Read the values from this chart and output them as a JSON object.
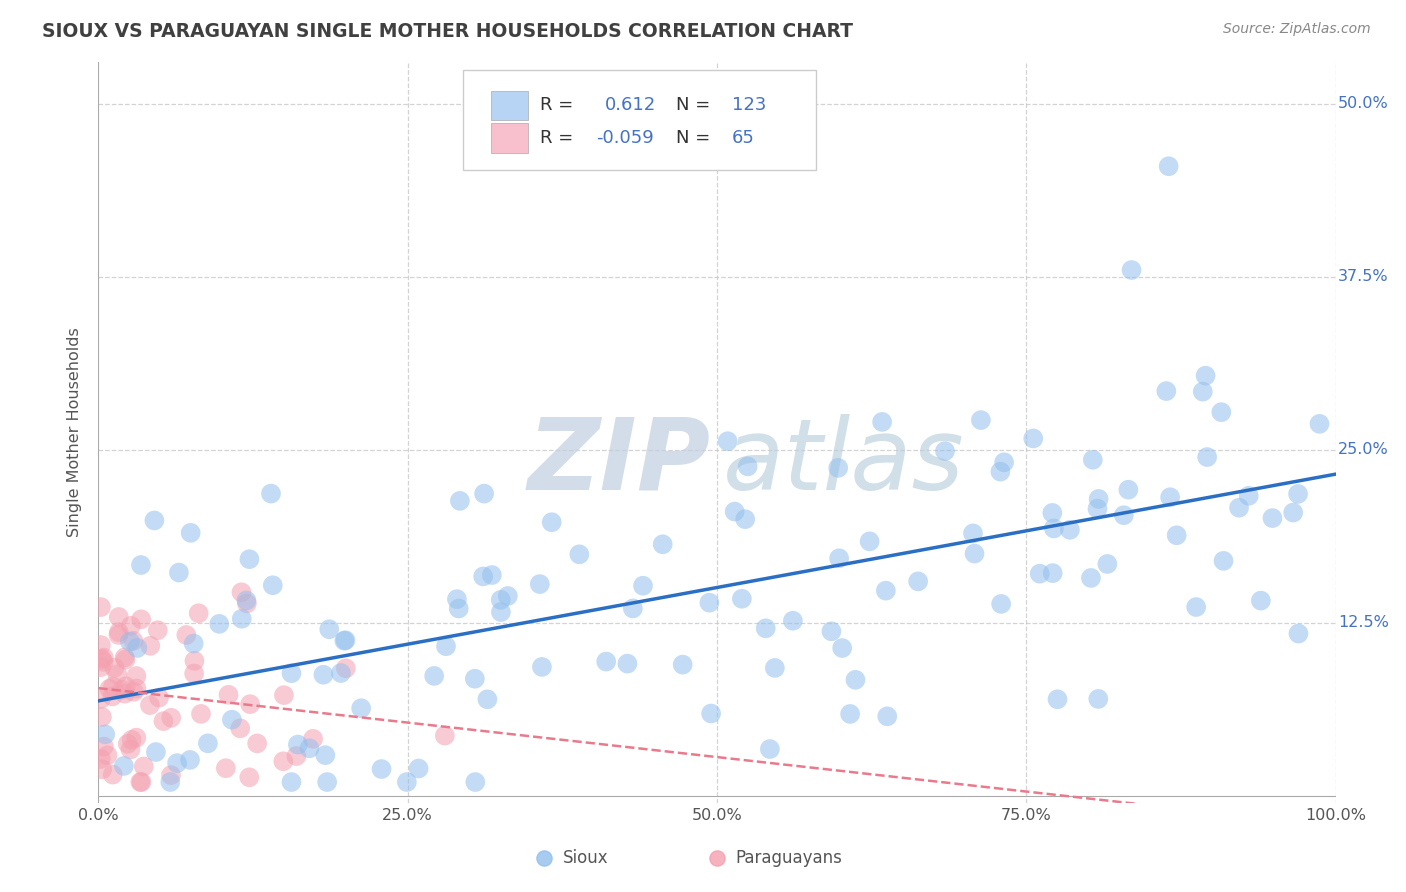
{
  "title": "SIOUX VS PARAGUAYAN SINGLE MOTHER HOUSEHOLDS CORRELATION CHART",
  "source_text": "Source: ZipAtlas.com",
  "ylabel": "Single Mother Households",
  "xlim": [
    0,
    1.0
  ],
  "ylim": [
    -0.005,
    0.53
  ],
  "xticks": [
    0.0,
    0.25,
    0.5,
    0.75,
    1.0
  ],
  "xticklabels": [
    "0.0%",
    "25.0%",
    "50.0%",
    "75.0%",
    "100.0%"
  ],
  "ytick_vals": [
    0.125,
    0.25,
    0.375,
    0.5
  ],
  "yticklabels": [
    "12.5%",
    "25.0%",
    "37.5%",
    "50.0%"
  ],
  "sioux_color": "#92bfed",
  "paraguayan_color": "#f4a0b0",
  "sioux_line_color": "#2b6fc4",
  "paraguayan_line_color": "#e87a8c",
  "legend_sioux_color": "#b8d4f4",
  "legend_paraguayan_color": "#f8c0cc",
  "R_sioux": "0.612",
  "N_sioux": "123",
  "R_paraguayan": "-0.059",
  "N_paraguayan": "65",
  "grid_color": "#c8c8c8",
  "background_color": "#ffffff",
  "title_color": "#404040",
  "axis_color": "#555555",
  "tick_color": "#4472c4",
  "watermark_zip_color": "#c0cfe0",
  "watermark_atlas_color": "#b8cedd"
}
